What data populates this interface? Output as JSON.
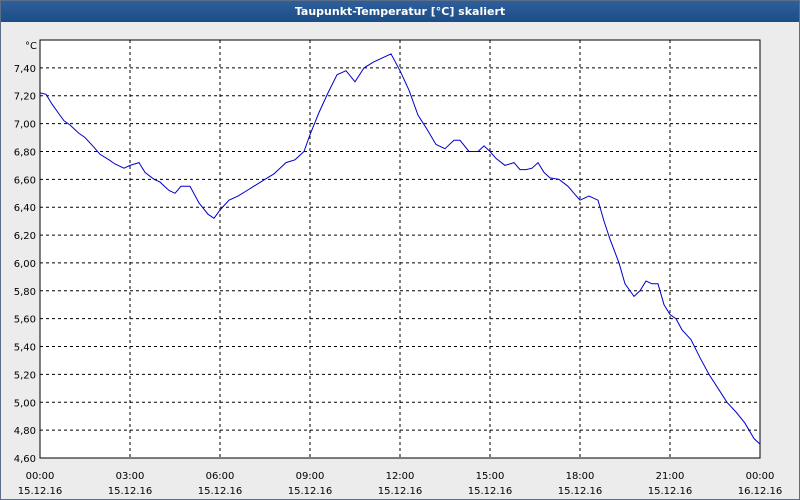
{
  "window": {
    "title": "Taupunkt-Temperatur [°C] skaliert"
  },
  "colors": {
    "series": "#0000cc",
    "grid": "#000000",
    "titlebar": "#1d4d87"
  },
  "chart_data": {
    "type": "line",
    "title": "Taupunkt-Temperatur [°C] skaliert",
    "ylabel": "°C",
    "xlabel": "",
    "ylim": [
      4.6,
      7.6
    ],
    "xlim": [
      0,
      24
    ],
    "grid": true,
    "y_ticks": [
      "7,40",
      "7,20",
      "7,00",
      "6,80",
      "6,60",
      "6,40",
      "6,20",
      "6,00",
      "5,80",
      "5,60",
      "5,40",
      "5,20",
      "5,00",
      "4,80",
      "4,60"
    ],
    "x_ticks": [
      {
        "time": "00:00",
        "date": "15.12.16"
      },
      {
        "time": "03:00",
        "date": "15.12.16"
      },
      {
        "time": "06:00",
        "date": "15.12.16"
      },
      {
        "time": "09:00",
        "date": "15.12.16"
      },
      {
        "time": "12:00",
        "date": "15.12.16"
      },
      {
        "time": "15:00",
        "date": "15.12.16"
      },
      {
        "time": "18:00",
        "date": "15.12.16"
      },
      {
        "time": "21:00",
        "date": "15.12.16"
      },
      {
        "time": "00:00",
        "date": "16.12.16"
      }
    ],
    "series": [
      {
        "x": [
          0.0,
          0.2,
          0.4,
          0.6,
          0.8,
          1.0,
          1.3,
          1.5,
          1.8,
          2.0,
          2.3,
          2.5,
          2.8,
          3.0,
          3.3,
          3.5,
          3.8,
          4.0,
          4.3,
          4.5,
          4.7,
          5.0,
          5.3,
          5.6,
          5.8,
          6.0,
          6.3,
          6.6,
          6.9,
          7.2,
          7.5,
          7.8,
          8.0,
          8.2,
          8.5,
          8.8,
          9.0,
          9.3,
          9.6,
          9.9,
          10.2,
          10.5,
          10.8,
          11.1,
          11.4,
          11.7,
          12.0,
          12.3,
          12.6,
          12.9,
          13.2,
          13.5,
          13.8,
          14.0,
          14.3,
          14.6,
          14.8,
          15.0,
          15.2,
          15.5,
          15.8,
          16.0,
          16.2,
          16.4,
          16.6,
          16.8,
          17.0,
          17.3,
          17.6,
          17.8,
          18.0,
          18.3,
          18.6,
          18.8,
          19.0,
          19.3,
          19.5,
          19.8,
          20.0,
          20.2,
          20.4,
          20.6,
          20.8,
          21.0,
          21.2,
          21.4,
          21.7,
          22.0,
          22.3,
          22.6,
          22.9,
          23.2,
          23.5,
          23.8,
          24.0
        ],
        "y": [
          7.22,
          7.21,
          7.14,
          7.08,
          7.02,
          6.99,
          6.93,
          6.9,
          6.83,
          6.78,
          6.74,
          6.71,
          6.68,
          6.7,
          6.72,
          6.65,
          6.6,
          6.58,
          6.52,
          6.5,
          6.55,
          6.55,
          6.43,
          6.35,
          6.32,
          6.38,
          6.45,
          6.48,
          6.52,
          6.56,
          6.6,
          6.64,
          6.68,
          6.72,
          6.74,
          6.8,
          6.92,
          7.08,
          7.22,
          7.35,
          7.38,
          7.3,
          7.4,
          7.44,
          7.47,
          7.5,
          7.38,
          7.24,
          7.06,
          6.96,
          6.85,
          6.82,
          6.88,
          6.88,
          6.8,
          6.8,
          6.84,
          6.8,
          6.75,
          6.7,
          6.72,
          6.67,
          6.67,
          6.68,
          6.72,
          6.65,
          6.61,
          6.6,
          6.55,
          6.5,
          6.45,
          6.48,
          6.45,
          6.3,
          6.17,
          6.0,
          5.85,
          5.76,
          5.8,
          5.87,
          5.85,
          5.85,
          5.7,
          5.63,
          5.6,
          5.52,
          5.45,
          5.32,
          5.2,
          5.1,
          5.0,
          4.93,
          4.85,
          4.74,
          4.7
        ]
      }
    ]
  }
}
